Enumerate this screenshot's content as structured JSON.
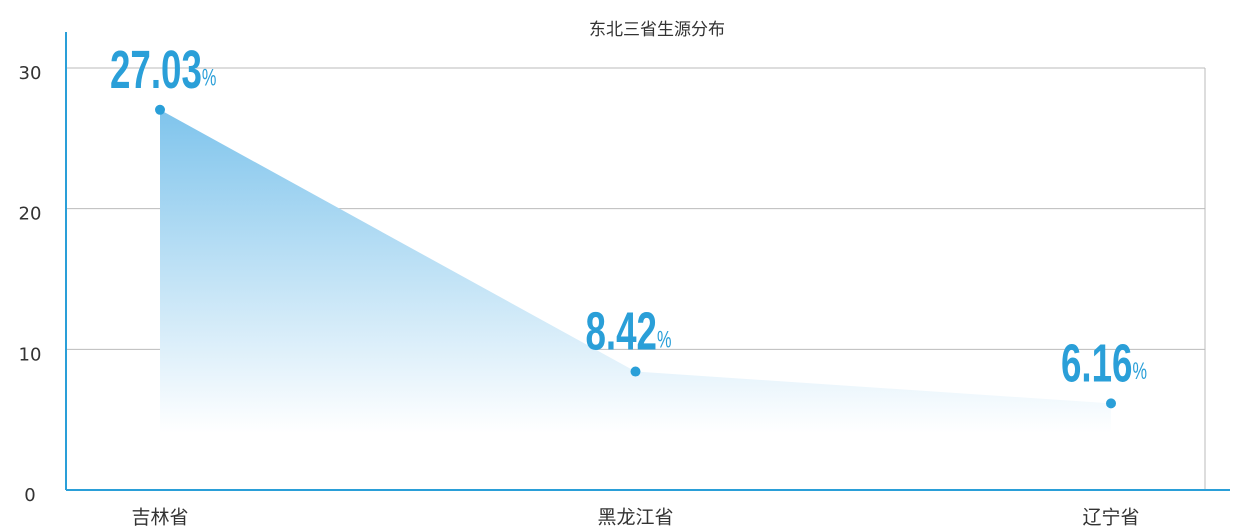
{
  "chart_data": {
    "type": "area",
    "title": "东北三省生源分布",
    "categories": [
      "吉林省",
      "黑龙江省",
      "辽宁省"
    ],
    "values": [
      27.03,
      8.42,
      6.16
    ],
    "value_unit": "%",
    "color": "#2a9fd8",
    "ylim": [
      0,
      30
    ],
    "yticks": [
      0,
      10,
      20,
      30
    ],
    "grid": true
  }
}
